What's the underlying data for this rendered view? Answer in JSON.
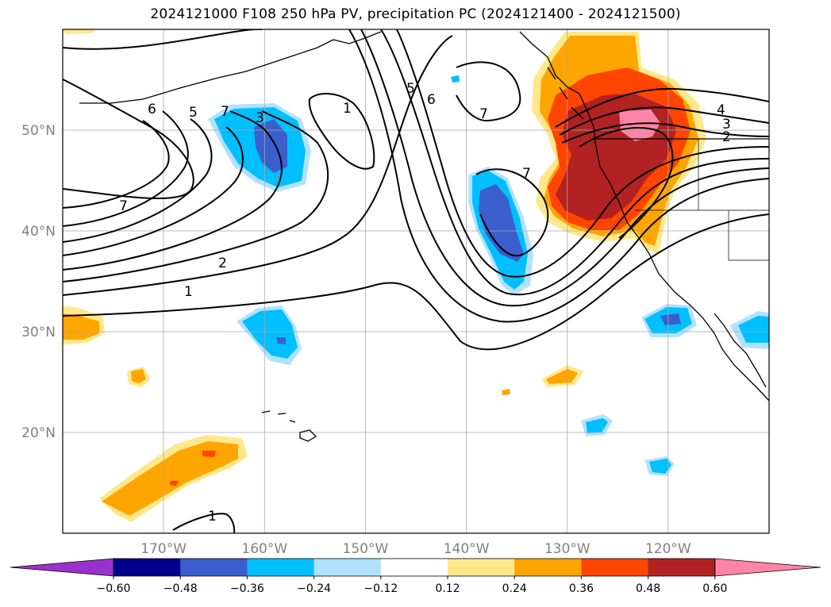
{
  "title": "2024121000 F108 250 hPa PV, precipitation PC (2024121400 - 2024121500)",
  "map": {
    "lat_range": [
      10,
      60
    ],
    "lon_range": [
      -180,
      -110
    ],
    "lat_labels": [
      {
        "lat": 50,
        "text": "50°N"
      },
      {
        "lat": 40,
        "text": "40°N"
      },
      {
        "lat": 30,
        "text": "30°N"
      },
      {
        "lat": 20,
        "text": "20°N"
      }
    ],
    "lon_labels": [
      {
        "lon": -170,
        "text": "170°W"
      },
      {
        "lon": -160,
        "text": "160°W"
      },
      {
        "lon": -150,
        "text": "150°W"
      },
      {
        "lon": -140,
        "text": "140°W"
      },
      {
        "lon": -130,
        "text": "130°W"
      },
      {
        "lon": -120,
        "text": "120°W"
      }
    ],
    "gridlines": true,
    "pv_contour_labels": [
      "1",
      "2",
      "3",
      "4",
      "5",
      "6",
      "7"
    ]
  },
  "colorbar": {
    "levels": [
      "−0.60",
      "−0.48",
      "−0.36",
      "−0.24",
      "−0.12",
      "0.12",
      "0.24",
      "0.36",
      "0.48",
      "0.60"
    ],
    "colors": [
      "#9932cc",
      "#00008b",
      "#3a5fcd",
      "#00bfff",
      "#b0e2ff",
      "#ffffff",
      "#ffe88c",
      "#ffa500",
      "#ff4500",
      "#b22222",
      "#ff85a8"
    ],
    "extend": "both"
  }
}
